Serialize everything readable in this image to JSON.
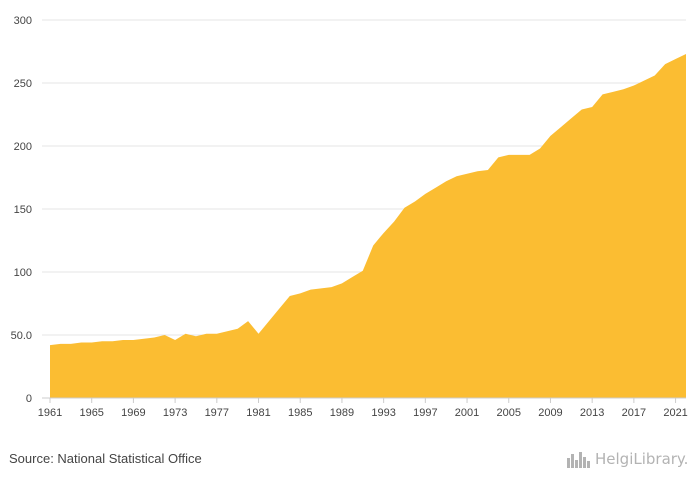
{
  "chart_data": {
    "type": "area",
    "title": "",
    "xlabel": "",
    "ylabel": "",
    "ylim": [
      0,
      300
    ],
    "y_ticks": [
      "0",
      "50.0",
      "100",
      "150",
      "200",
      "250",
      "300"
    ],
    "x_ticks": [
      "1961",
      "1965",
      "1969",
      "1973",
      "1977",
      "1981",
      "1985",
      "1989",
      "1993",
      "1997",
      "2001",
      "2005",
      "2009",
      "2013",
      "2017",
      "2021"
    ],
    "grid": true,
    "color": "#fbbd32",
    "series": [
      {
        "x": [
          1961,
          1962,
          1963,
          1964,
          1965,
          1966,
          1967,
          1968,
          1969,
          1970,
          1971,
          1972,
          1973,
          1974,
          1975,
          1976,
          1977,
          1978,
          1979,
          1980,
          1981,
          1982,
          1983,
          1984,
          1985,
          1986,
          1987,
          1988,
          1989,
          1990,
          1991,
          1992,
          1993,
          1994,
          1995,
          1996,
          1997,
          1998,
          1999,
          2000,
          2001,
          2002,
          2003,
          2004,
          2005,
          2006,
          2007,
          2008,
          2009,
          2010,
          2011,
          2012,
          2013,
          2014,
          2015,
          2016,
          2017,
          2018,
          2019,
          2020,
          2021,
          2022
        ],
        "values": [
          42,
          43,
          43,
          44,
          44,
          45,
          45,
          46,
          46,
          47,
          48,
          50,
          46,
          51,
          49,
          51,
          51,
          53,
          55,
          61,
          51,
          61,
          71,
          81,
          83,
          86,
          87,
          88,
          91,
          96,
          101,
          121,
          131,
          140,
          151,
          156,
          162,
          167,
          172,
          176,
          178,
          180,
          181,
          191,
          193,
          193,
          193,
          198,
          208,
          215,
          222,
          229,
          231,
          241,
          243,
          245,
          248,
          252,
          256,
          265,
          269,
          273
        ]
      }
    ]
  },
  "footer": {
    "source": "Source: National Statistical Office",
    "logo_text": "HelgiLibrary."
  },
  "icons": {
    "logo_icon": "city-skyline-icon"
  }
}
